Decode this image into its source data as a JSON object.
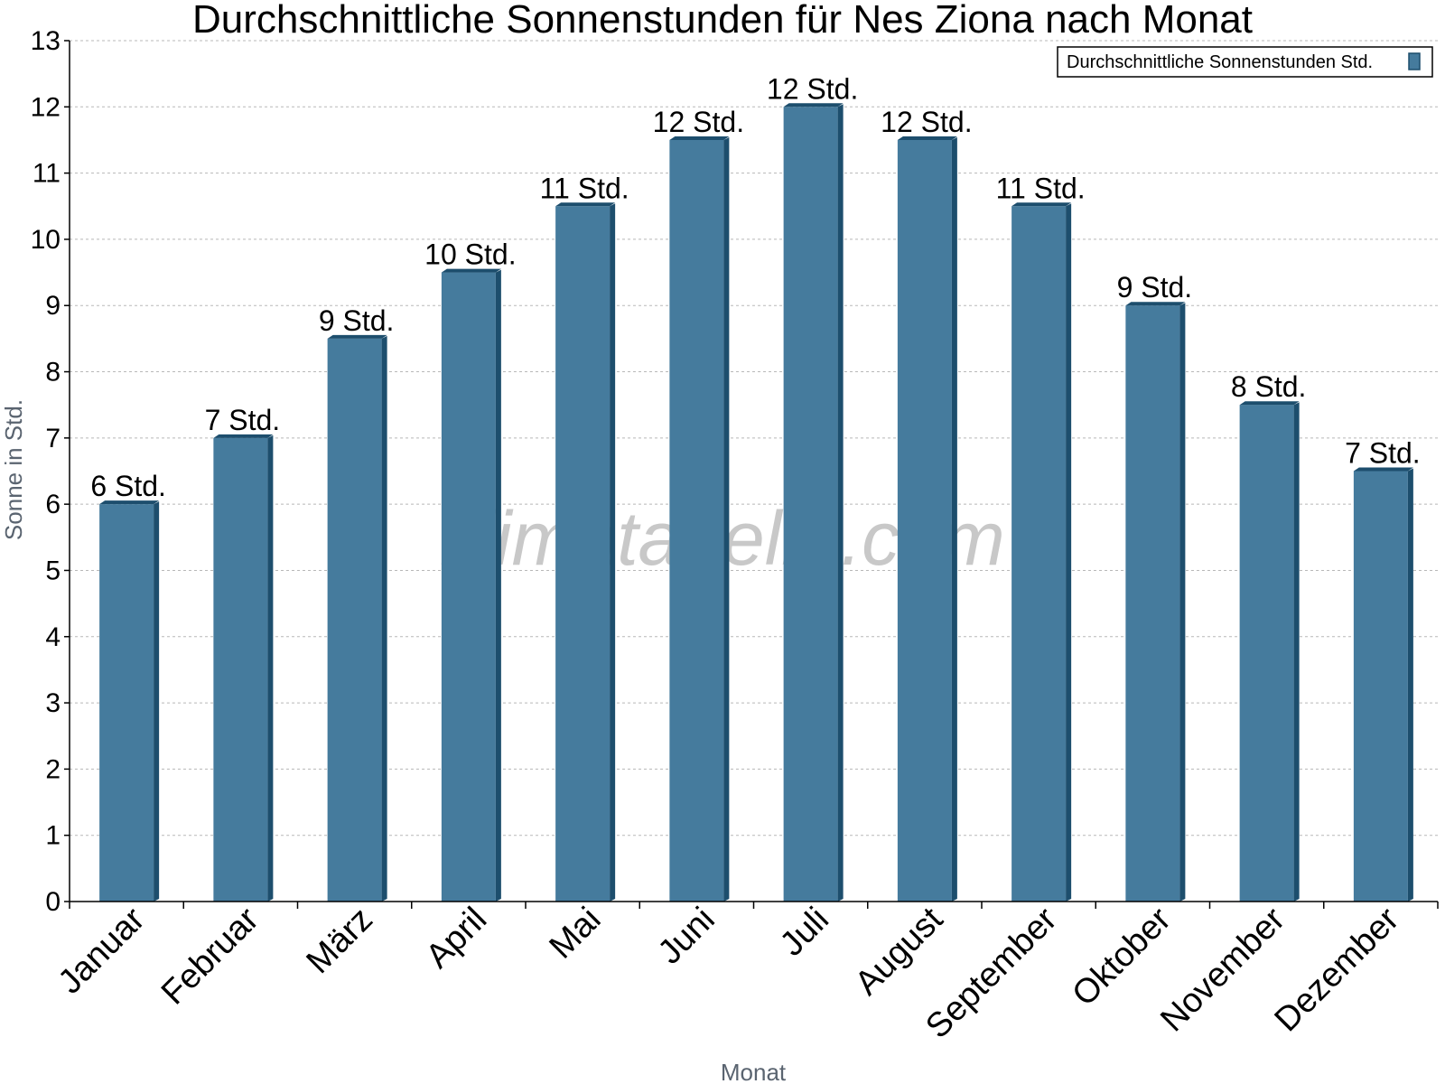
{
  "chart_data": {
    "type": "bar",
    "title": "Durchschnittliche Sonnenstunden für Nes Ziona nach Monat",
    "xlabel": "Monat",
    "ylabel": "Sonne in Std.",
    "ylim": [
      0,
      13
    ],
    "yticks": [
      0,
      1,
      2,
      3,
      4,
      5,
      6,
      7,
      8,
      9,
      10,
      11,
      12,
      13
    ],
    "grid": true,
    "legend_position": "top-right",
    "categories": [
      "Januar",
      "Februar",
      "März",
      "April",
      "Mai",
      "Juni",
      "Juli",
      "August",
      "September",
      "Oktober",
      "November",
      "Dezember"
    ],
    "series": [
      {
        "name": "Durchschnittliche Sonnenstunden Std.",
        "values": [
          6,
          7,
          8.5,
          9.5,
          10.5,
          11.5,
          12,
          11.5,
          10.5,
          9,
          7.5,
          6.5
        ],
        "data_labels": [
          "6 Std.",
          "7 Std.",
          "9 Std.",
          "10 Std.",
          "11 Std.",
          "12 Std.",
          "12 Std.",
          "12 Std.",
          "11 Std.",
          "9 Std.",
          "8 Std.",
          "7 Std."
        ]
      }
    ],
    "bar_color": "#457b9d",
    "bar_side_color": "#1d4e6d",
    "watermark": "klimatabelle.com"
  }
}
